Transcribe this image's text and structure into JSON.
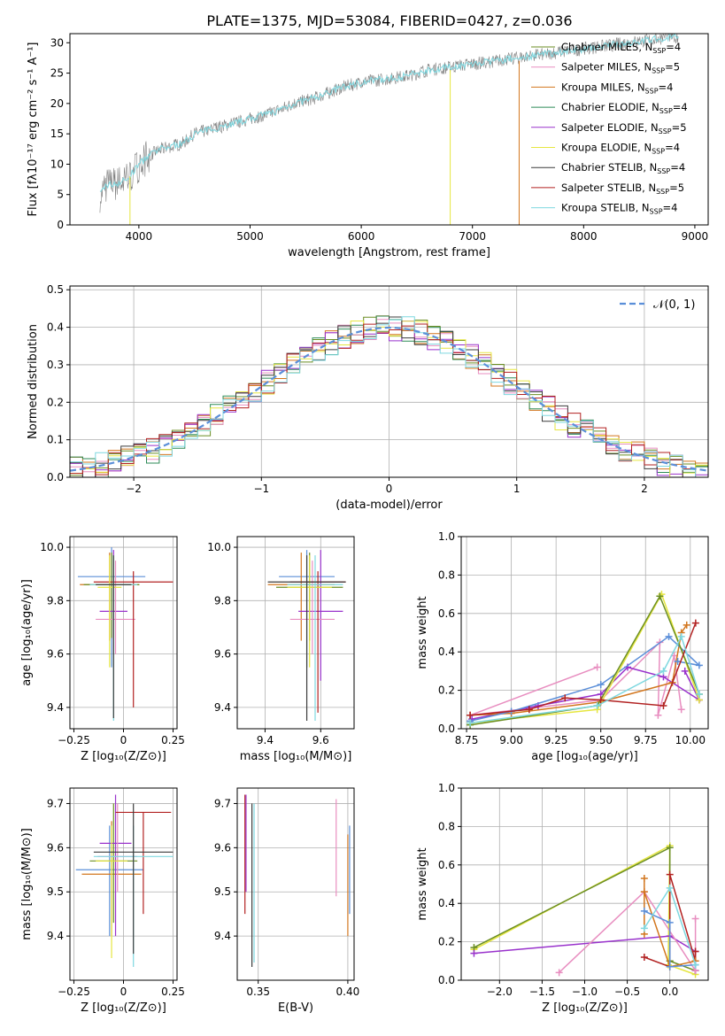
{
  "figure": {
    "title": "PLATE=1375, MJD=53084, FIBERID=0427, z=0.036"
  },
  "chart_data": [
    {
      "id": "spectrum",
      "type": "line",
      "xlabel": "wavelength [Angstrom, rest frame]",
      "ylabel": "Flux [fλ10⁻¹⁷ erg cm⁻² s⁻¹ A⁻¹]",
      "xlim": [
        3380,
        9120
      ],
      "ylim": [
        0,
        31.5
      ],
      "xticks": [
        4000,
        5000,
        6000,
        7000,
        8000,
        9000
      ],
      "yticks": [
        0,
        5,
        10,
        15,
        20,
        25,
        30
      ],
      "grid": false,
      "legend_position": "top-right",
      "observed": {
        "color": "#808080",
        "x": [
          3650,
          3700,
          3800,
          3900,
          4000,
          4100,
          4200,
          4300,
          4400,
          4500,
          4600,
          4700,
          4800,
          4900,
          5000,
          5200,
          5400,
          5600,
          5800,
          6000,
          6200,
          6400,
          6600,
          6800,
          7000,
          7200,
          7400,
          7600,
          7800,
          8000,
          8200,
          8400,
          8600,
          8800
        ],
        "y": [
          5,
          6.5,
          6.8,
          7.5,
          10,
          11.5,
          12.5,
          13,
          13.5,
          15,
          15.5,
          16,
          16.5,
          17,
          17.5,
          18.5,
          20,
          21,
          22.5,
          23.5,
          24,
          24.5,
          25.5,
          26,
          26.5,
          27,
          27.5,
          28,
          28.5,
          29,
          29.5,
          30,
          30.5,
          31
        ]
      },
      "series": [
        {
          "name": "Chabrier MILES, N",
          "sub": "SSP",
          "tail": "=4",
          "color": "#6b8e23"
        },
        {
          "name": "Salpeter MILES, N",
          "sub": "SSP",
          "tail": "=5",
          "color": "#e88ec0"
        },
        {
          "name": "Kroupa MILES, N",
          "sub": "SSP",
          "tail": "=4",
          "color": "#d2761e"
        },
        {
          "name": "Chabrier ELODIE, N",
          "sub": "SSP",
          "tail": "=4",
          "color": "#2e8b57"
        },
        {
          "name": "Salpeter ELODIE, N",
          "sub": "SSP",
          "tail": "=5",
          "color": "#9932cc"
        },
        {
          "name": "Kroupa ELODIE, N",
          "sub": "SSP",
          "tail": "=4",
          "color": "#e6e640"
        },
        {
          "name": "Chabrier STELIB, N",
          "sub": "SSP",
          "tail": "=4",
          "color": "#3c3c3c"
        },
        {
          "name": "Salpeter STELIB, N",
          "sub": "SSP",
          "tail": "=5",
          "color": "#b22222"
        },
        {
          "name": "Kroupa STELIB, N",
          "sub": "SSP",
          "tail": "=4",
          "color": "#7fd8e0"
        }
      ]
    },
    {
      "id": "residuals",
      "type": "histogram",
      "xlabel": "(data-model)/error",
      "ylabel": "Normed distribution",
      "xlim": [
        -2.5,
        2.5
      ],
      "ylim": [
        0,
        0.51
      ],
      "xticks": [
        -2,
        -1,
        0,
        1,
        2
      ],
      "yticks": [
        0.0,
        0.1,
        0.2,
        0.3,
        0.4,
        0.5
      ],
      "grid": true,
      "legend_position": "top-right",
      "reference": {
        "label": "𝒩(0, 1)",
        "color": "#5b8fd9",
        "mean": 0,
        "sigma": 1
      }
    },
    {
      "id": "age-vs-Z",
      "type": "scatter",
      "xlabel": "Z [log₁₀(Z/Z⊙)]",
      "ylabel": "age  [log₁₀(age/yr)]",
      "xlim": [
        -0.27,
        0.27
      ],
      "ylim": [
        9.32,
        10.04
      ],
      "xticks": [
        -0.25,
        0.0,
        0.25
      ],
      "yticks": [
        9.4,
        9.6,
        9.8,
        10.0
      ],
      "grid": true,
      "points": [
        {
          "color": "#5b8fd9",
          "x": -0.06,
          "y": 9.89,
          "xerr": 0.17,
          "ylo": 9.55,
          "yhi": 10.0
        },
        {
          "color": "#d2761e",
          "x": -0.07,
          "y": 9.86,
          "xerr": 0.15,
          "ylo": 9.65,
          "yhi": 9.98
        },
        {
          "color": "#6b8e23",
          "x": -0.06,
          "y": 9.86,
          "xerr": 0.14,
          "ylo": 9.66,
          "yhi": 9.98
        },
        {
          "color": "#9932cc",
          "x": -0.05,
          "y": 9.76,
          "xerr": 0.07,
          "ylo": 9.6,
          "yhi": 9.99
        },
        {
          "color": "#e88ec0",
          "x": -0.04,
          "y": 9.73,
          "xerr": 0.1,
          "ylo": 9.6,
          "yhi": 9.95
        },
        {
          "color": "#b22222",
          "x": 0.05,
          "y": 9.87,
          "xerr": 0.2,
          "ylo": 9.4,
          "yhi": 9.91
        },
        {
          "color": "#e6e640",
          "x": -0.07,
          "y": 9.85,
          "xerr": 0.06,
          "ylo": 9.55,
          "yhi": 9.97
        },
        {
          "color": "#7fd8e0",
          "x": -0.05,
          "y": 9.86,
          "xerr": 0.12,
          "ylo": 9.35,
          "yhi": 9.97
        },
        {
          "color": "#3c3c3c",
          "x": -0.05,
          "y": 9.86,
          "xerr": 0.09,
          "ylo": 9.36,
          "yhi": 9.97
        }
      ]
    },
    {
      "id": "age-vs-mass",
      "type": "scatter",
      "xlabel": "mass [log₁₀(M/M⊙)]",
      "ylabel": "",
      "xlim": [
        9.3,
        9.72
      ],
      "ylim": [
        9.32,
        10.04
      ],
      "xticks": [
        9.4,
        9.6
      ],
      "yticks": [
        9.4,
        9.6,
        9.8,
        10.0
      ],
      "grid": true,
      "points": [
        {
          "color": "#5b8fd9",
          "x": 9.55,
          "y": 9.89,
          "xerr": 0.1,
          "ylo": 9.55,
          "yhi": 9.99
        },
        {
          "color": "#d2761e",
          "x": 9.53,
          "y": 9.86,
          "xerr": 0.12,
          "ylo": 9.65,
          "yhi": 9.98
        },
        {
          "color": "#6b8e23",
          "x": 9.56,
          "y": 9.85,
          "xerr": 0.12,
          "ylo": 9.65,
          "yhi": 9.98
        },
        {
          "color": "#9932cc",
          "x": 9.6,
          "y": 9.76,
          "xerr": 0.08,
          "ylo": 9.5,
          "yhi": 9.99
        },
        {
          "color": "#e88ec0",
          "x": 9.57,
          "y": 9.73,
          "xerr": 0.08,
          "ylo": 9.6,
          "yhi": 9.95
        },
        {
          "color": "#b22222",
          "x": 9.59,
          "y": 9.87,
          "xerr": 0.1,
          "ylo": 9.38,
          "yhi": 9.91
        },
        {
          "color": "#e6e640",
          "x": 9.56,
          "y": 9.85,
          "xerr": 0.08,
          "ylo": 9.55,
          "yhi": 9.97
        },
        {
          "color": "#7fd8e0",
          "x": 9.58,
          "y": 9.86,
          "xerr": 0.1,
          "ylo": 9.35,
          "yhi": 9.97
        },
        {
          "color": "#3c3c3c",
          "x": 9.55,
          "y": 9.87,
          "xerr": 0.14,
          "ylo": 9.35,
          "yhi": 9.97
        }
      ]
    },
    {
      "id": "weight-vs-age",
      "type": "line",
      "xlabel": "age  [log₁₀(age/yr)]",
      "ylabel": "mass weight",
      "xlim": [
        8.72,
        10.1
      ],
      "ylim": [
        0,
        1
      ],
      "xticks": [
        8.75,
        9.0,
        9.25,
        9.5,
        9.75,
        10.0
      ],
      "yticks": [
        0.0,
        0.2,
        0.4,
        0.6,
        0.8,
        1.0
      ],
      "grid": true,
      "series": [
        {
          "color": "#e88ec0",
          "x": [
            9.48,
            8.77,
            9.5,
            9.83,
            9.82,
            9.91,
            9.95
          ],
          "y": [
            0.32,
            0.07,
            0.15,
            0.45,
            0.07,
            0.38,
            0.1
          ]
        },
        {
          "color": "#9932cc",
          "x": [
            8.78,
            9.15,
            9.5,
            9.65,
            9.85,
            10.05,
            9.97
          ],
          "y": [
            0.05,
            0.12,
            0.18,
            0.32,
            0.27,
            0.15,
            0.3
          ]
        },
        {
          "color": "#d2761e",
          "x": [
            8.77,
            9.0,
            9.5,
            9.9,
            9.95,
            9.98
          ],
          "y": [
            0.07,
            0.08,
            0.14,
            0.24,
            0.5,
            0.54
          ]
        },
        {
          "color": "#5b8fd9",
          "x": [
            8.77,
            9.0,
            9.5,
            9.88,
            10.05,
            9.93
          ],
          "y": [
            0.04,
            0.09,
            0.23,
            0.48,
            0.33,
            0.35
          ]
        },
        {
          "color": "#e6e640",
          "x": [
            8.77,
            9.48,
            9.84,
            10.05
          ],
          "y": [
            0.03,
            0.1,
            0.7,
            0.15
          ]
        },
        {
          "color": "#6b8e23",
          "x": [
            8.77,
            9.48,
            9.83,
            10.05
          ],
          "y": [
            0.02,
            0.12,
            0.69,
            0.18
          ]
        },
        {
          "color": "#b22222",
          "x": [
            8.77,
            9.1,
            9.3,
            9.5,
            9.85,
            10.03
          ],
          "y": [
            0.07,
            0.1,
            0.16,
            0.15,
            0.12,
            0.55
          ]
        },
        {
          "color": "#7fd8e0",
          "x": [
            8.77,
            9.48,
            9.85,
            9.95,
            10.05
          ],
          "y": [
            0.03,
            0.12,
            0.3,
            0.48,
            0.18
          ]
        }
      ]
    },
    {
      "id": "mass-vs-Z",
      "type": "scatter",
      "xlabel": "Z [log₁₀(Z/Z⊙)]",
      "ylabel": "mass [log₁₀(M/M⊙)]",
      "xlim": [
        -0.27,
        0.27
      ],
      "ylim": [
        9.3,
        9.735
      ],
      "xticks": [
        -0.25,
        0.0,
        0.25
      ],
      "yticks": [
        9.4,
        9.5,
        9.6,
        9.7
      ],
      "grid": true,
      "points": [
        {
          "color": "#5b8fd9",
          "x": -0.07,
          "y": 9.55,
          "xerr": 0.17,
          "ylo": 9.4,
          "yhi": 9.65
        },
        {
          "color": "#d2761e",
          "x": -0.06,
          "y": 9.54,
          "xerr": 0.15,
          "ylo": 9.4,
          "yhi": 9.66
        },
        {
          "color": "#6b8e23",
          "x": -0.05,
          "y": 9.57,
          "xerr": 0.12,
          "ylo": 9.43,
          "yhi": 9.7
        },
        {
          "color": "#9932cc",
          "x": -0.04,
          "y": 9.61,
          "xerr": 0.08,
          "ylo": 9.4,
          "yhi": 9.72
        },
        {
          "color": "#e88ec0",
          "x": -0.03,
          "y": 9.58,
          "xerr": 0.1,
          "ylo": 9.5,
          "yhi": 9.7
        },
        {
          "color": "#b22222",
          "x": 0.1,
          "y": 9.68,
          "xerr": 0.14,
          "ylo": 9.45,
          "yhi": 9.68
        },
        {
          "color": "#e6e640",
          "x": -0.06,
          "y": 9.57,
          "xerr": 0.08,
          "ylo": 9.35,
          "yhi": 9.65
        },
        {
          "color": "#7fd8e0",
          "x": 0.05,
          "y": 9.58,
          "xerr": 0.2,
          "ylo": 9.33,
          "yhi": 9.65
        },
        {
          "color": "#3c3c3c",
          "x": 0.05,
          "y": 9.59,
          "xerr": 0.2,
          "ylo": 9.36,
          "yhi": 9.7
        }
      ]
    },
    {
      "id": "mass-vs-EBV",
      "type": "scatter",
      "xlabel": "E(B-V)",
      "ylabel": "",
      "xlim": [
        0.3383,
        0.4035
      ],
      "ylim": [
        9.3,
        9.735
      ],
      "xticks": [
        0.35,
        0.4
      ],
      "yticks": [
        9.4,
        9.5,
        9.6,
        9.7
      ],
      "grid": true,
      "points": [
        {
          "color": "#b22222",
          "x": 0.3426,
          "y": 9.6,
          "xerr": 0,
          "ylo": 9.45,
          "yhi": 9.72
        },
        {
          "color": "#9932cc",
          "x": 0.3432,
          "y": 9.6,
          "xerr": 0,
          "ylo": 9.5,
          "yhi": 9.72
        },
        {
          "color": "#3c3c3c",
          "x": 0.3465,
          "y": 9.55,
          "xerr": 0,
          "ylo": 9.33,
          "yhi": 9.7
        },
        {
          "color": "#7fd8e0",
          "x": 0.3477,
          "y": 9.55,
          "xerr": 0,
          "ylo": 9.34,
          "yhi": 9.7
        },
        {
          "color": "#e88ec0",
          "x": 0.3935,
          "y": 9.6,
          "xerr": 0,
          "ylo": 9.49,
          "yhi": 9.71
        },
        {
          "color": "#d2761e",
          "x": 0.4,
          "y": 9.52,
          "xerr": 0,
          "ylo": 9.4,
          "yhi": 9.63
        },
        {
          "color": "#5b8fd9",
          "x": 0.401,
          "y": 9.55,
          "xerr": 0,
          "ylo": 9.45,
          "yhi": 9.65
        }
      ]
    },
    {
      "id": "weight-vs-Z",
      "type": "line",
      "xlabel": "Z [log₁₀(Z/Z⊙)]",
      "ylabel": "mass weight",
      "xlim": [
        -2.45,
        0.45
      ],
      "ylim": [
        0,
        1
      ],
      "xticks": [
        -2.0,
        -1.5,
        -1.0,
        -0.5,
        0.0
      ],
      "yticks": [
        0.0,
        0.2,
        0.4,
        0.6,
        0.8,
        1.0
      ],
      "grid": true,
      "series": [
        {
          "color": "#e6e640",
          "x": [
            -2.3,
            0.0,
            -0.02,
            0.3
          ],
          "y": [
            0.16,
            0.7,
            0.08,
            0.03
          ]
        },
        {
          "color": "#6b8e23",
          "x": [
            -2.3,
            0.0,
            0.0,
            0.3
          ],
          "y": [
            0.17,
            0.69,
            0.1,
            0.05
          ]
        },
        {
          "color": "#9932cc",
          "x": [
            -2.3,
            0.0,
            0.3,
            0.3
          ],
          "y": [
            0.14,
            0.23,
            0.15,
            0.05
          ]
        },
        {
          "color": "#e88ec0",
          "x": [
            -1.3,
            -0.3,
            0.3,
            0.3
          ],
          "y": [
            0.04,
            0.46,
            0.05,
            0.32
          ]
        },
        {
          "color": "#b22222",
          "x": [
            -0.3,
            0.0,
            0.0,
            0.3,
            0.3
          ],
          "y": [
            0.12,
            0.07,
            0.55,
            0.1,
            0.15
          ]
        },
        {
          "color": "#d2761e",
          "x": [
            -0.3,
            -0.3,
            -0.3,
            0.0,
            0.3
          ],
          "y": [
            0.53,
            0.24,
            0.46,
            0.07,
            0.1
          ]
        },
        {
          "color": "#5b8fd9",
          "x": [
            -0.3,
            0.0,
            0.0,
            0.3
          ],
          "y": [
            0.36,
            0.3,
            0.07,
            0.08
          ]
        },
        {
          "color": "#7fd8e0",
          "x": [
            -0.3,
            0.0,
            0.3
          ],
          "y": [
            0.27,
            0.48,
            0.08
          ]
        }
      ]
    }
  ]
}
